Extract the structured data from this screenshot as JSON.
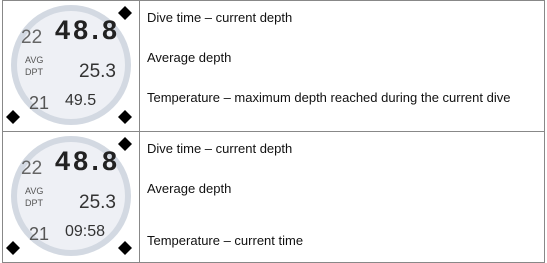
{
  "table": {
    "rows": [
      {
        "display": {
          "dive_time": "22",
          "depth": "48.8",
          "avg_label": "AVG",
          "dpt_label": "DPT",
          "avg_depth": "25.3",
          "temperature": "21",
          "bottom": "49.5"
        },
        "lines": [
          "Dive time – current depth",
          "Average depth",
          "Temperature – maximum depth reached during the current dive"
        ]
      },
      {
        "display": {
          "dive_time": "22",
          "depth": "48.8",
          "avg_label": "AVG",
          "dpt_label": "DPT",
          "avg_depth": "25.3",
          "temperature": "21",
          "bottom": "09:58"
        },
        "lines": [
          "Dive time – current depth",
          "Average depth",
          "Temperature – current time"
        ]
      }
    ]
  }
}
